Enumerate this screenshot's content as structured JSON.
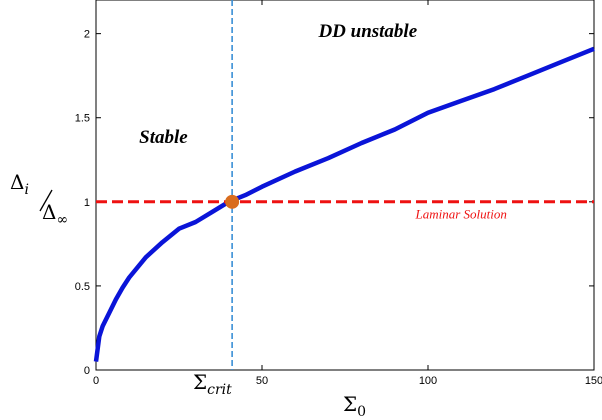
{
  "chart_data": {
    "type": "line",
    "xlim": [
      0,
      150
    ],
    "ylim": [
      0,
      2.2
    ],
    "x_ticks": [
      0,
      50,
      100,
      150
    ],
    "y_ticks": [
      0,
      0.5,
      1,
      1.5,
      2
    ],
    "x_tick_labels": [
      "0",
      "50",
      "100",
      "150"
    ],
    "y_tick_labels": [
      "0",
      "0.5",
      "1",
      "1.5",
      "2"
    ],
    "xlabel": {
      "symbol": "Σ",
      "sub": "0"
    },
    "ylabel": {
      "num": "Δ",
      "num_sub": "i",
      "den": "Δ",
      "den_sub": "∞"
    },
    "series": [
      {
        "color": "#0a14d8",
        "style": "solid",
        "points": [
          [
            0,
            0.05
          ],
          [
            1,
            0.2
          ],
          [
            2,
            0.26
          ],
          [
            4,
            0.34
          ],
          [
            6,
            0.42
          ],
          [
            8,
            0.49
          ],
          [
            10,
            0.55
          ],
          [
            15,
            0.67
          ],
          [
            20,
            0.76
          ],
          [
            25,
            0.84
          ],
          [
            30,
            0.88
          ],
          [
            35,
            0.94
          ],
          [
            40,
            1.0
          ],
          [
            45,
            1.04
          ],
          [
            50,
            1.09
          ],
          [
            60,
            1.18
          ],
          [
            70,
            1.26
          ],
          [
            80,
            1.35
          ],
          [
            90,
            1.43
          ],
          [
            100,
            1.53
          ],
          [
            110,
            1.6
          ],
          [
            120,
            1.67
          ],
          [
            130,
            1.75
          ],
          [
            140,
            1.83
          ],
          [
            150,
            1.91
          ]
        ]
      },
      {
        "color": "#ee1111",
        "style": "dashed",
        "points": [
          [
            0,
            1
          ],
          [
            150,
            1
          ]
        ]
      }
    ],
    "critical": {
      "x": 41,
      "y": 1.0,
      "line_color": "#3a8fd6",
      "marker_color": "#d96d1e",
      "label_symbol": "Σ",
      "label_sub": "crit"
    },
    "regions": [
      {
        "text": "DD unstable",
        "x": 67,
        "y": 1.98
      },
      {
        "text": "Stable",
        "x": 13,
        "y": 1.35
      }
    ],
    "annotations": [
      {
        "text": "Laminar Solution",
        "x": 110,
        "y": 0.9,
        "color": "#ee1111"
      }
    ]
  }
}
